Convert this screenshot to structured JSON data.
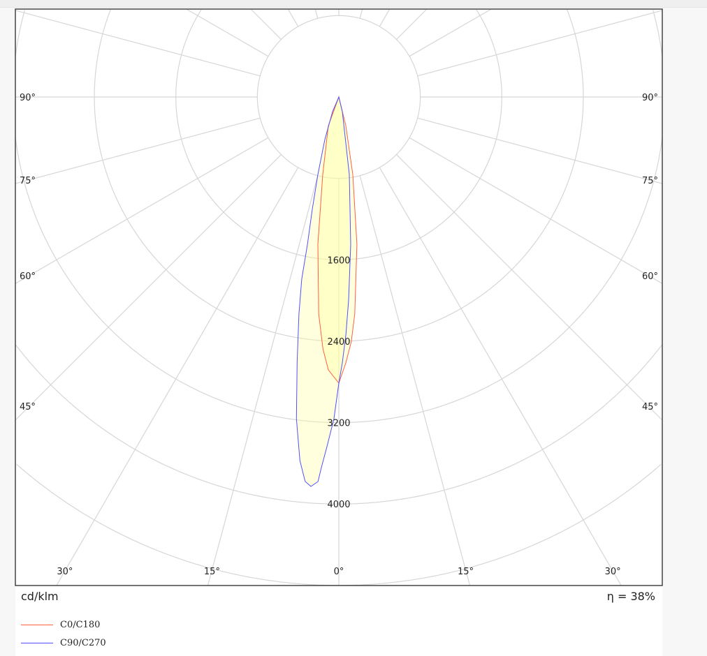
{
  "chart_data": {
    "type": "polar",
    "unit_label": "cd/klm",
    "efficiency_label": "η = 38%",
    "radial_ticks": [
      800,
      1600,
      2400,
      3200,
      4000,
      4800
    ],
    "radial_tick_labels": [
      "1600",
      "2400",
      "3200",
      "4000"
    ],
    "radial_labeled_values": [
      1600,
      2400,
      3200,
      4000
    ],
    "angle_step_deg": 15,
    "angle_labels": [
      {
        "angle": 90,
        "text": "90°"
      },
      {
        "angle": 75,
        "text": "75°"
      },
      {
        "angle": 60,
        "text": "60°"
      },
      {
        "angle": 45,
        "text": "45°"
      },
      {
        "angle": 30,
        "text": "30°"
      },
      {
        "angle": 15,
        "text": "15°"
      },
      {
        "angle": 0,
        "text": "0°"
      }
    ],
    "grid": true,
    "legend_position": "bottom-left",
    "series": [
      {
        "name": "C0/C180",
        "color": "#ff6040",
        "points": [
          [
            90,
            0
          ],
          [
            13.7,
            290
          ],
          [
            10.2,
            774
          ],
          [
            7.0,
            1458
          ],
          [
            4.2,
            2139
          ],
          [
            2.9,
            2409
          ],
          [
            1.5,
            2614
          ],
          [
            0,
            2812
          ],
          [
            -2.2,
            2684
          ],
          [
            -3.6,
            2481
          ],
          [
            -5.3,
            2142
          ],
          [
            -8.1,
            1461
          ],
          [
            -11.7,
            777
          ],
          [
            -20,
            300
          ],
          [
            -90,
            0
          ]
        ]
      },
      {
        "name": "C90/C270",
        "color": "#5050ff",
        "points": [
          [
            90,
            0
          ],
          [
            13.4,
            148
          ],
          [
            7.7,
            768
          ],
          [
            4.6,
            1452
          ],
          [
            2.75,
            1998
          ],
          [
            1.7,
            2339
          ],
          [
            0.75,
            2613
          ],
          [
            0,
            2812
          ],
          [
            -0.87,
            3162
          ],
          [
            -1.94,
            3438
          ],
          [
            -2.7,
            3646
          ],
          [
            -3.1,
            3785
          ],
          [
            -4.1,
            3837
          ],
          [
            -5.0,
            3793
          ],
          [
            -6.1,
            3594
          ],
          [
            -7.5,
            3189
          ],
          [
            -8.9,
            2645
          ],
          [
            -10.4,
            2168
          ],
          [
            -11.5,
            1826
          ],
          [
            -12.0,
            1480
          ],
          [
            -13.3,
            1134
          ],
          [
            -15.1,
            789
          ],
          [
            -18.2,
            440
          ],
          [
            -23.2,
            157
          ],
          [
            -90,
            0
          ]
        ]
      }
    ],
    "fill_color": "#ffffa0",
    "grid_color": "#d6d6d6"
  }
}
